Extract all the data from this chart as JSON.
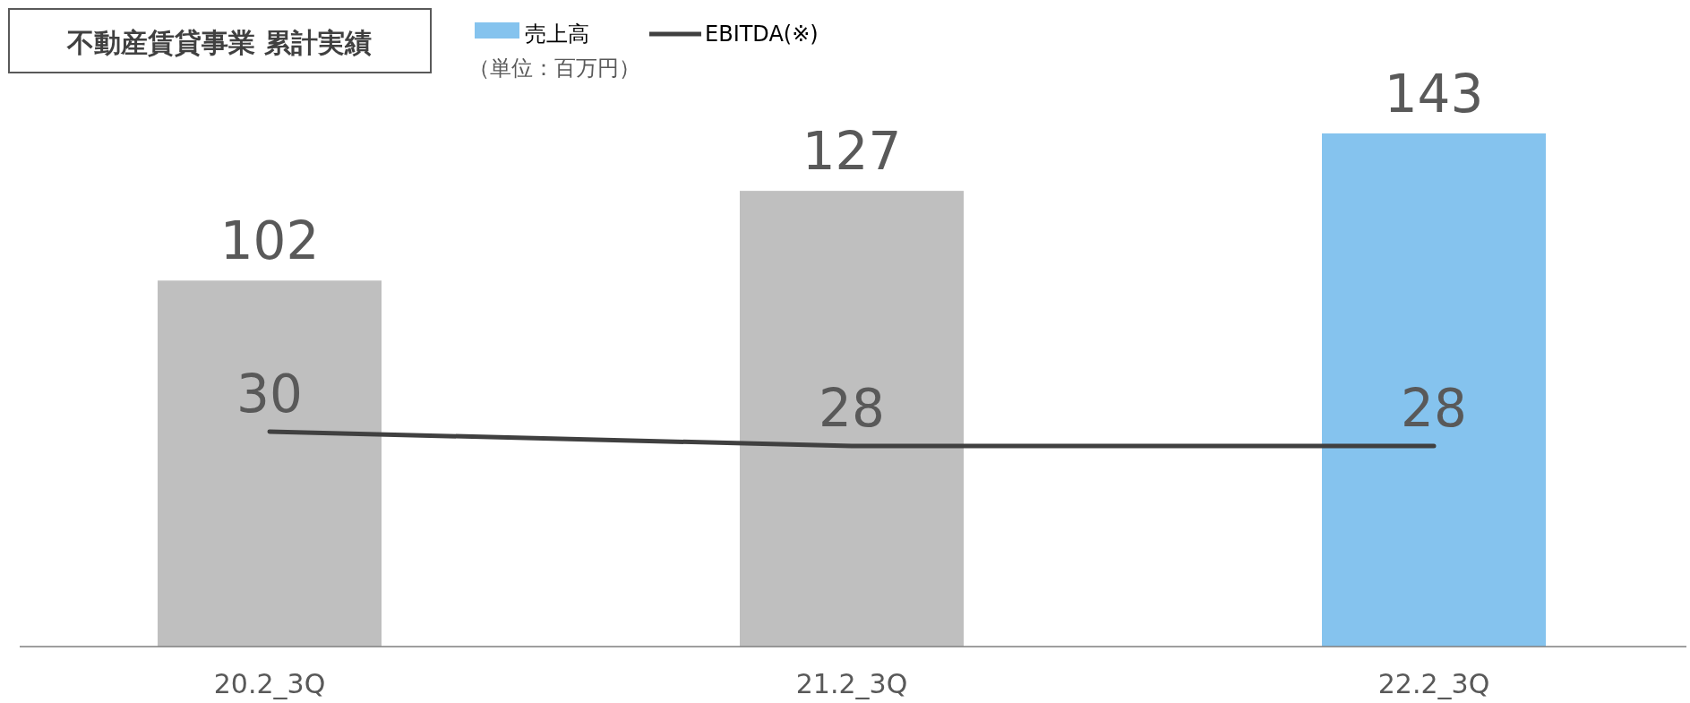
{
  "chart_data": {
    "type": "bar",
    "title": "不動産賃貸事業 累計実績",
    "annotations": [
      "（単位：百万円）"
    ],
    "categories": [
      "20.2_3Q",
      "21.2_3Q",
      "22.2_3Q"
    ],
    "series": [
      {
        "name": "売上高",
        "colors": [
          "#bfbfbf",
          "#bfbfbf",
          "#85c3ee"
        ],
        "color": "#85c3ee",
        "values": [
          102,
          127,
          143
        ]
      },
      {
        "name": "EBITDA(※)",
        "type": "line",
        "axis": "y2",
        "color": "#404040",
        "values": [
          30,
          28,
          28
        ]
      }
    ],
    "data_labels": true,
    "tick_labels": "x",
    "legend": "top"
  }
}
